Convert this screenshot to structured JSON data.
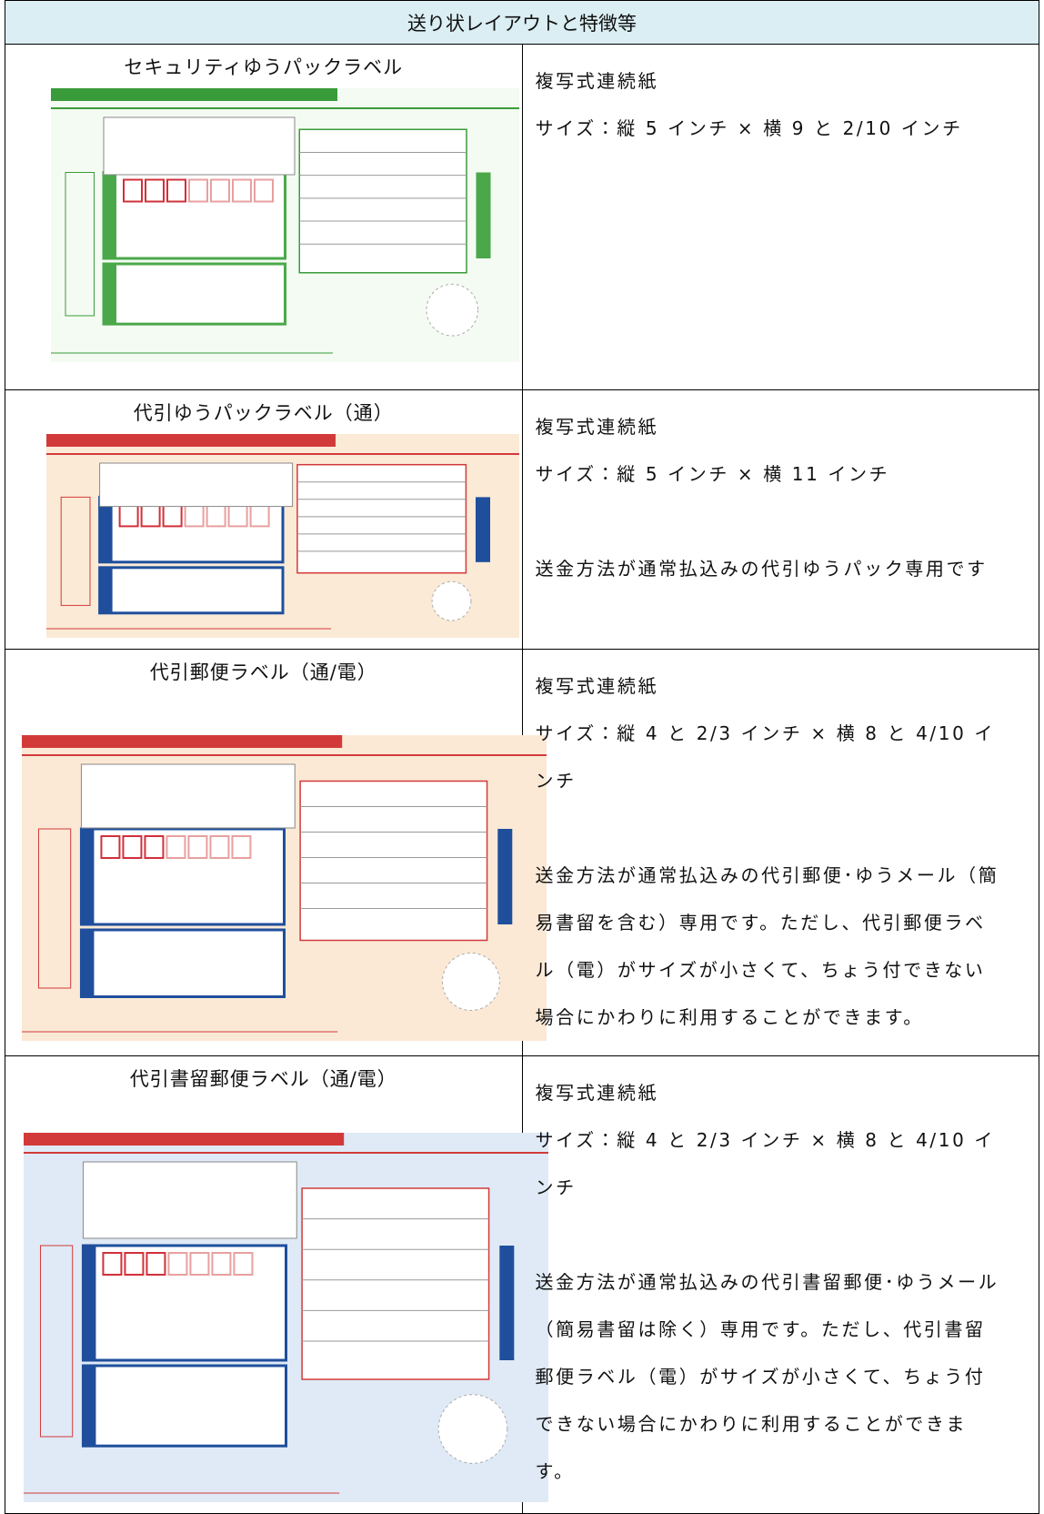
{
  "header": {
    "title": "送り状レイアウトと特徴等"
  },
  "rows": [
    {
      "title": "セキュリティゆうパックラベル",
      "paragraphs": [
        "複写式連続紙",
        "サイズ：縦 5 インチ × 横 9 と 2/10 インチ"
      ]
    },
    {
      "title": "代引ゆうパックラベル（通）",
      "paragraphs": [
        "複写式連続紙",
        "サイズ：縦 5 インチ × 横 11 インチ",
        "送金方法が通常払込みの代引ゆうパック専用です"
      ]
    },
    {
      "title": "代引郵便ラベル（通/電）",
      "paragraphs": [
        "複写式連続紙",
        "サイズ：縦 4 と 2/3 インチ × 横 8 と 4/10 インチ",
        "送金方法が通常払込みの代引郵便･ゆうメール（簡易書留を含む）専用です。ただし、代引郵便ラベル（電）がサイズが小さくて、ちょう付できない場合にかわりに利用することができます。"
      ]
    },
    {
      "title": "代引書留郵便ラベル（通/電）",
      "paragraphs": [
        "複写式連続紙",
        "サイズ：縦 4 と 2/3 インチ × 横 8 と 4/10 インチ",
        "送金方法が通常払込みの代引書留郵便･ゆうメール（簡易書留は除く）専用です。ただし、代引書留郵便ラベル（電）がサイズが小さくて、ちょう付できない場合にかわりに利用することができます。"
      ]
    }
  ]
}
